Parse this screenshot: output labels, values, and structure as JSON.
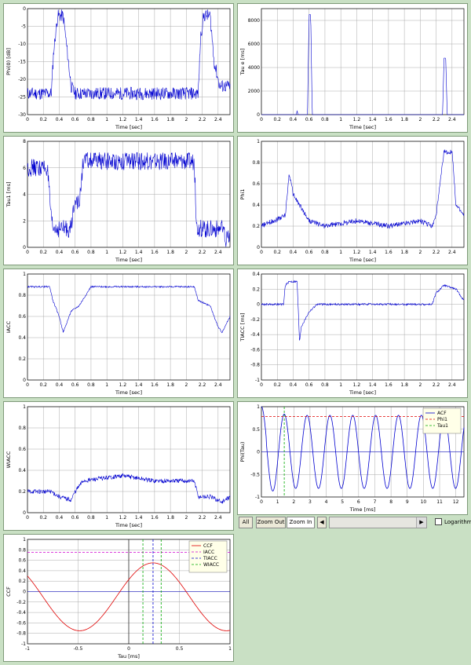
{
  "charts": [
    {
      "id": "phi0",
      "type": "line",
      "ylabel": "Phi(0) [dB]",
      "xlabel": "Time [sec]",
      "xlim": [
        0,
        2.55
      ],
      "ylim": [
        -30,
        0
      ],
      "xticks": [
        0,
        0.2,
        0.4,
        0.6,
        0.8,
        1,
        1.2,
        1.4,
        1.6,
        1.8,
        2,
        2.2,
        2.4
      ],
      "yticks": [
        -30,
        -25,
        -20,
        -15,
        -10,
        -5,
        0
      ],
      "x": [
        0,
        0.25,
        0.3,
        0.33,
        0.38,
        0.45,
        0.5,
        0.55,
        0.6,
        2.05,
        2.15,
        2.18,
        2.22,
        2.3,
        2.35,
        2.42,
        2.55
      ],
      "y": [
        -24,
        -24,
        -24,
        -12,
        -2,
        -2,
        -12,
        -22,
        -24,
        -24,
        -24,
        -8,
        -2,
        -2,
        -15,
        -22,
        -22
      ],
      "noise": 1,
      "color": "#0000d0"
    },
    {
      "id": "tauE",
      "type": "line",
      "ylabel": "Tau e [ms]",
      "xlabel": "Time [sec]",
      "xlim": [
        0,
        2.55
      ],
      "ylim": [
        0,
        9000
      ],
      "xticks": [
        0,
        0.2,
        0.4,
        0.6,
        0.8,
        1,
        1.2,
        1.4,
        1.6,
        1.8,
        2,
        2.2,
        2.4
      ],
      "yticks": [
        0,
        2000,
        4000,
        6000,
        8000
      ],
      "x": [
        0,
        0.44,
        0.45,
        0.46,
        0.58,
        0.6,
        0.62,
        0.64,
        2.28,
        2.3,
        2.32,
        2.34,
        2.55
      ],
      "y": [
        0,
        0,
        350,
        0,
        0,
        8500,
        8500,
        0,
        0,
        4800,
        4800,
        0,
        0
      ],
      "noise": 0,
      "color": "#0000d0"
    },
    {
      "id": "tau1",
      "type": "line",
      "ylabel": "Tau1 [ms]",
      "xlabel": "Time [sec]",
      "xlim": [
        0,
        2.55
      ],
      "ylim": [
        0,
        8
      ],
      "xticks": [
        0,
        0.2,
        0.4,
        0.6,
        0.8,
        1,
        1.2,
        1.4,
        1.6,
        1.8,
        2,
        2.2,
        2.4
      ],
      "yticks": [
        0,
        2,
        4,
        6,
        8
      ],
      "x": [
        0,
        0.25,
        0.3,
        0.32,
        0.55,
        0.6,
        0.65,
        0.7,
        2.1,
        2.13,
        2.2,
        2.45,
        2.5,
        2.55
      ],
      "y": [
        6,
        6,
        2,
        1.4,
        1.4,
        4,
        3,
        6.5,
        6.5,
        1.5,
        1.4,
        1.4,
        0.5,
        0.8
      ],
      "noise": 1.4,
      "color": "#0000d0"
    },
    {
      "id": "phi1",
      "type": "line",
      "ylabel": "Phi1",
      "xlabel": "Time [sec]",
      "xlim": [
        0,
        2.55
      ],
      "ylim": [
        0,
        1
      ],
      "xticks": [
        0,
        0.2,
        0.4,
        0.6,
        0.8,
        1,
        1.2,
        1.4,
        1.6,
        1.8,
        2,
        2.2,
        2.4
      ],
      "yticks": [
        0,
        0.2,
        0.4,
        0.6,
        0.8,
        1
      ],
      "x": [
        0,
        0.3,
        0.35,
        0.4,
        0.6,
        0.8,
        1.2,
        1.6,
        2.0,
        2.15,
        2.2,
        2.3,
        2.4,
        2.45,
        2.55
      ],
      "y": [
        0.2,
        0.3,
        0.7,
        0.5,
        0.25,
        0.2,
        0.25,
        0.2,
        0.25,
        0.2,
        0.3,
        0.9,
        0.9,
        0.4,
        0.3
      ],
      "noise": 0.4,
      "color": "#0000d0"
    },
    {
      "id": "iacc",
      "type": "line",
      "ylabel": "IACC",
      "xlabel": "Time [sec]",
      "xlim": [
        0,
        2.55
      ],
      "ylim": [
        0,
        1
      ],
      "xticks": [
        0,
        0.2,
        0.4,
        0.6,
        0.8,
        1,
        1.2,
        1.4,
        1.6,
        1.8,
        2,
        2.2,
        2.4
      ],
      "yticks": [
        0,
        0.2,
        0.4,
        0.6,
        0.8,
        1
      ],
      "x": [
        0,
        0.28,
        0.32,
        0.4,
        0.45,
        0.55,
        0.65,
        0.8,
        2.1,
        2.15,
        2.3,
        2.4,
        2.45,
        2.55
      ],
      "y": [
        0.88,
        0.88,
        0.75,
        0.6,
        0.45,
        0.65,
        0.7,
        0.88,
        0.88,
        0.75,
        0.7,
        0.5,
        0.45,
        0.6
      ],
      "noise": 0.12,
      "color": "#0000d0"
    },
    {
      "id": "tiacc",
      "type": "line",
      "ylabel": "TIACC [ms]",
      "xlabel": "Time [sec]",
      "xlim": [
        0,
        2.55
      ],
      "ylim": [
        -1,
        0.4
      ],
      "xticks": [
        0,
        0.2,
        0.4,
        0.6,
        0.8,
        1,
        1.2,
        1.4,
        1.6,
        1.8,
        2,
        2.2,
        2.4
      ],
      "yticks": [
        -1,
        -0.8,
        -0.6,
        -0.4,
        -0.2,
        0,
        0.2,
        0.4
      ],
      "x": [
        0,
        0.28,
        0.3,
        0.35,
        0.45,
        0.48,
        0.5,
        0.6,
        0.7,
        2.15,
        2.2,
        2.3,
        2.45,
        2.55
      ],
      "y": [
        0,
        0,
        0.25,
        0.3,
        0.3,
        -0.5,
        -0.3,
        -0.1,
        0,
        0,
        0.15,
        0.25,
        0.2,
        0.05
      ],
      "noise": 0.15,
      "color": "#0000d0"
    },
    {
      "id": "wiacc",
      "type": "line",
      "ylabel": "WIACC",
      "xlabel": "Time [sec]",
      "xlim": [
        0,
        2.55
      ],
      "ylim": [
        0,
        1
      ],
      "xticks": [
        0,
        0.2,
        0.4,
        0.6,
        0.8,
        1,
        1.2,
        1.4,
        1.6,
        1.8,
        2,
        2.2,
        2.4
      ],
      "yticks": [
        0,
        0.2,
        0.4,
        0.6,
        0.8,
        1
      ],
      "x": [
        0,
        0.3,
        0.4,
        0.55,
        0.6,
        0.7,
        1.2,
        1.6,
        2.1,
        2.15,
        2.3,
        2.45,
        2.55
      ],
      "y": [
        0.2,
        0.2,
        0.15,
        0.12,
        0.2,
        0.3,
        0.35,
        0.3,
        0.3,
        0.15,
        0.15,
        0.1,
        0.15
      ],
      "noise": 0.35,
      "color": "#0000d0"
    },
    {
      "id": "acf",
      "type": "line",
      "ylabel": "Phi(Tau)",
      "xlabel": "Time [ms]",
      "xlim": [
        0,
        12.5
      ],
      "ylim": [
        -1,
        1
      ],
      "xticks": [
        0,
        1,
        2,
        3,
        4,
        5,
        6,
        7,
        8,
        9,
        10,
        11,
        12
      ],
      "yticks": [
        -1,
        -0.5,
        0,
        0.5,
        1
      ],
      "series": [
        {
          "name": "ACF",
          "kind": "cos",
          "period": 1.41,
          "amp": 0.9,
          "color": "#0000d0"
        },
        {
          "name": "Phi1",
          "kind": "hline",
          "value": 0.78,
          "color": "#e00000",
          "dash": "3,2"
        },
        {
          "name": "Tau1",
          "kind": "vline",
          "value": 1.41,
          "color": "#00aa00",
          "dash": "3,2"
        }
      ],
      "legend": "top-right"
    },
    {
      "id": "ccf",
      "type": "line",
      "ylabel": "CCF",
      "xlabel": "Tau [ms]",
      "xlim": [
        -1,
        1
      ],
      "ylim": [
        -1,
        1
      ],
      "xticks": [
        -1,
        -0.5,
        0,
        0.5,
        1
      ],
      "yticks": [
        -1,
        -0.8,
        -0.6,
        -0.4,
        -0.2,
        0,
        0.2,
        0.4,
        0.6,
        0.8,
        1
      ],
      "series": [
        {
          "name": "CCF",
          "kind": "ccf",
          "color": "#e00000"
        },
        {
          "name": "IACC",
          "kind": "hline",
          "value": 0.75,
          "color": "#d000d0",
          "dash": "3,2"
        },
        {
          "name": "TIACC",
          "kind": "vline",
          "value": 0.24,
          "color": "#0000d0",
          "dash": "3,2"
        },
        {
          "name": "WIACC",
          "kind": "vlines",
          "values": [
            0.14,
            0.32
          ],
          "color": "#00aa00",
          "dash": "3,2"
        }
      ],
      "legend": "top-right"
    }
  ],
  "toolbar": {
    "all_label": "All",
    "zoom_out_label": "Zoom Out",
    "zoom_in_label": "Zoom In",
    "left_arrow": "◀",
    "right_arrow": "▶",
    "logarithm_label": "Logarithm"
  }
}
